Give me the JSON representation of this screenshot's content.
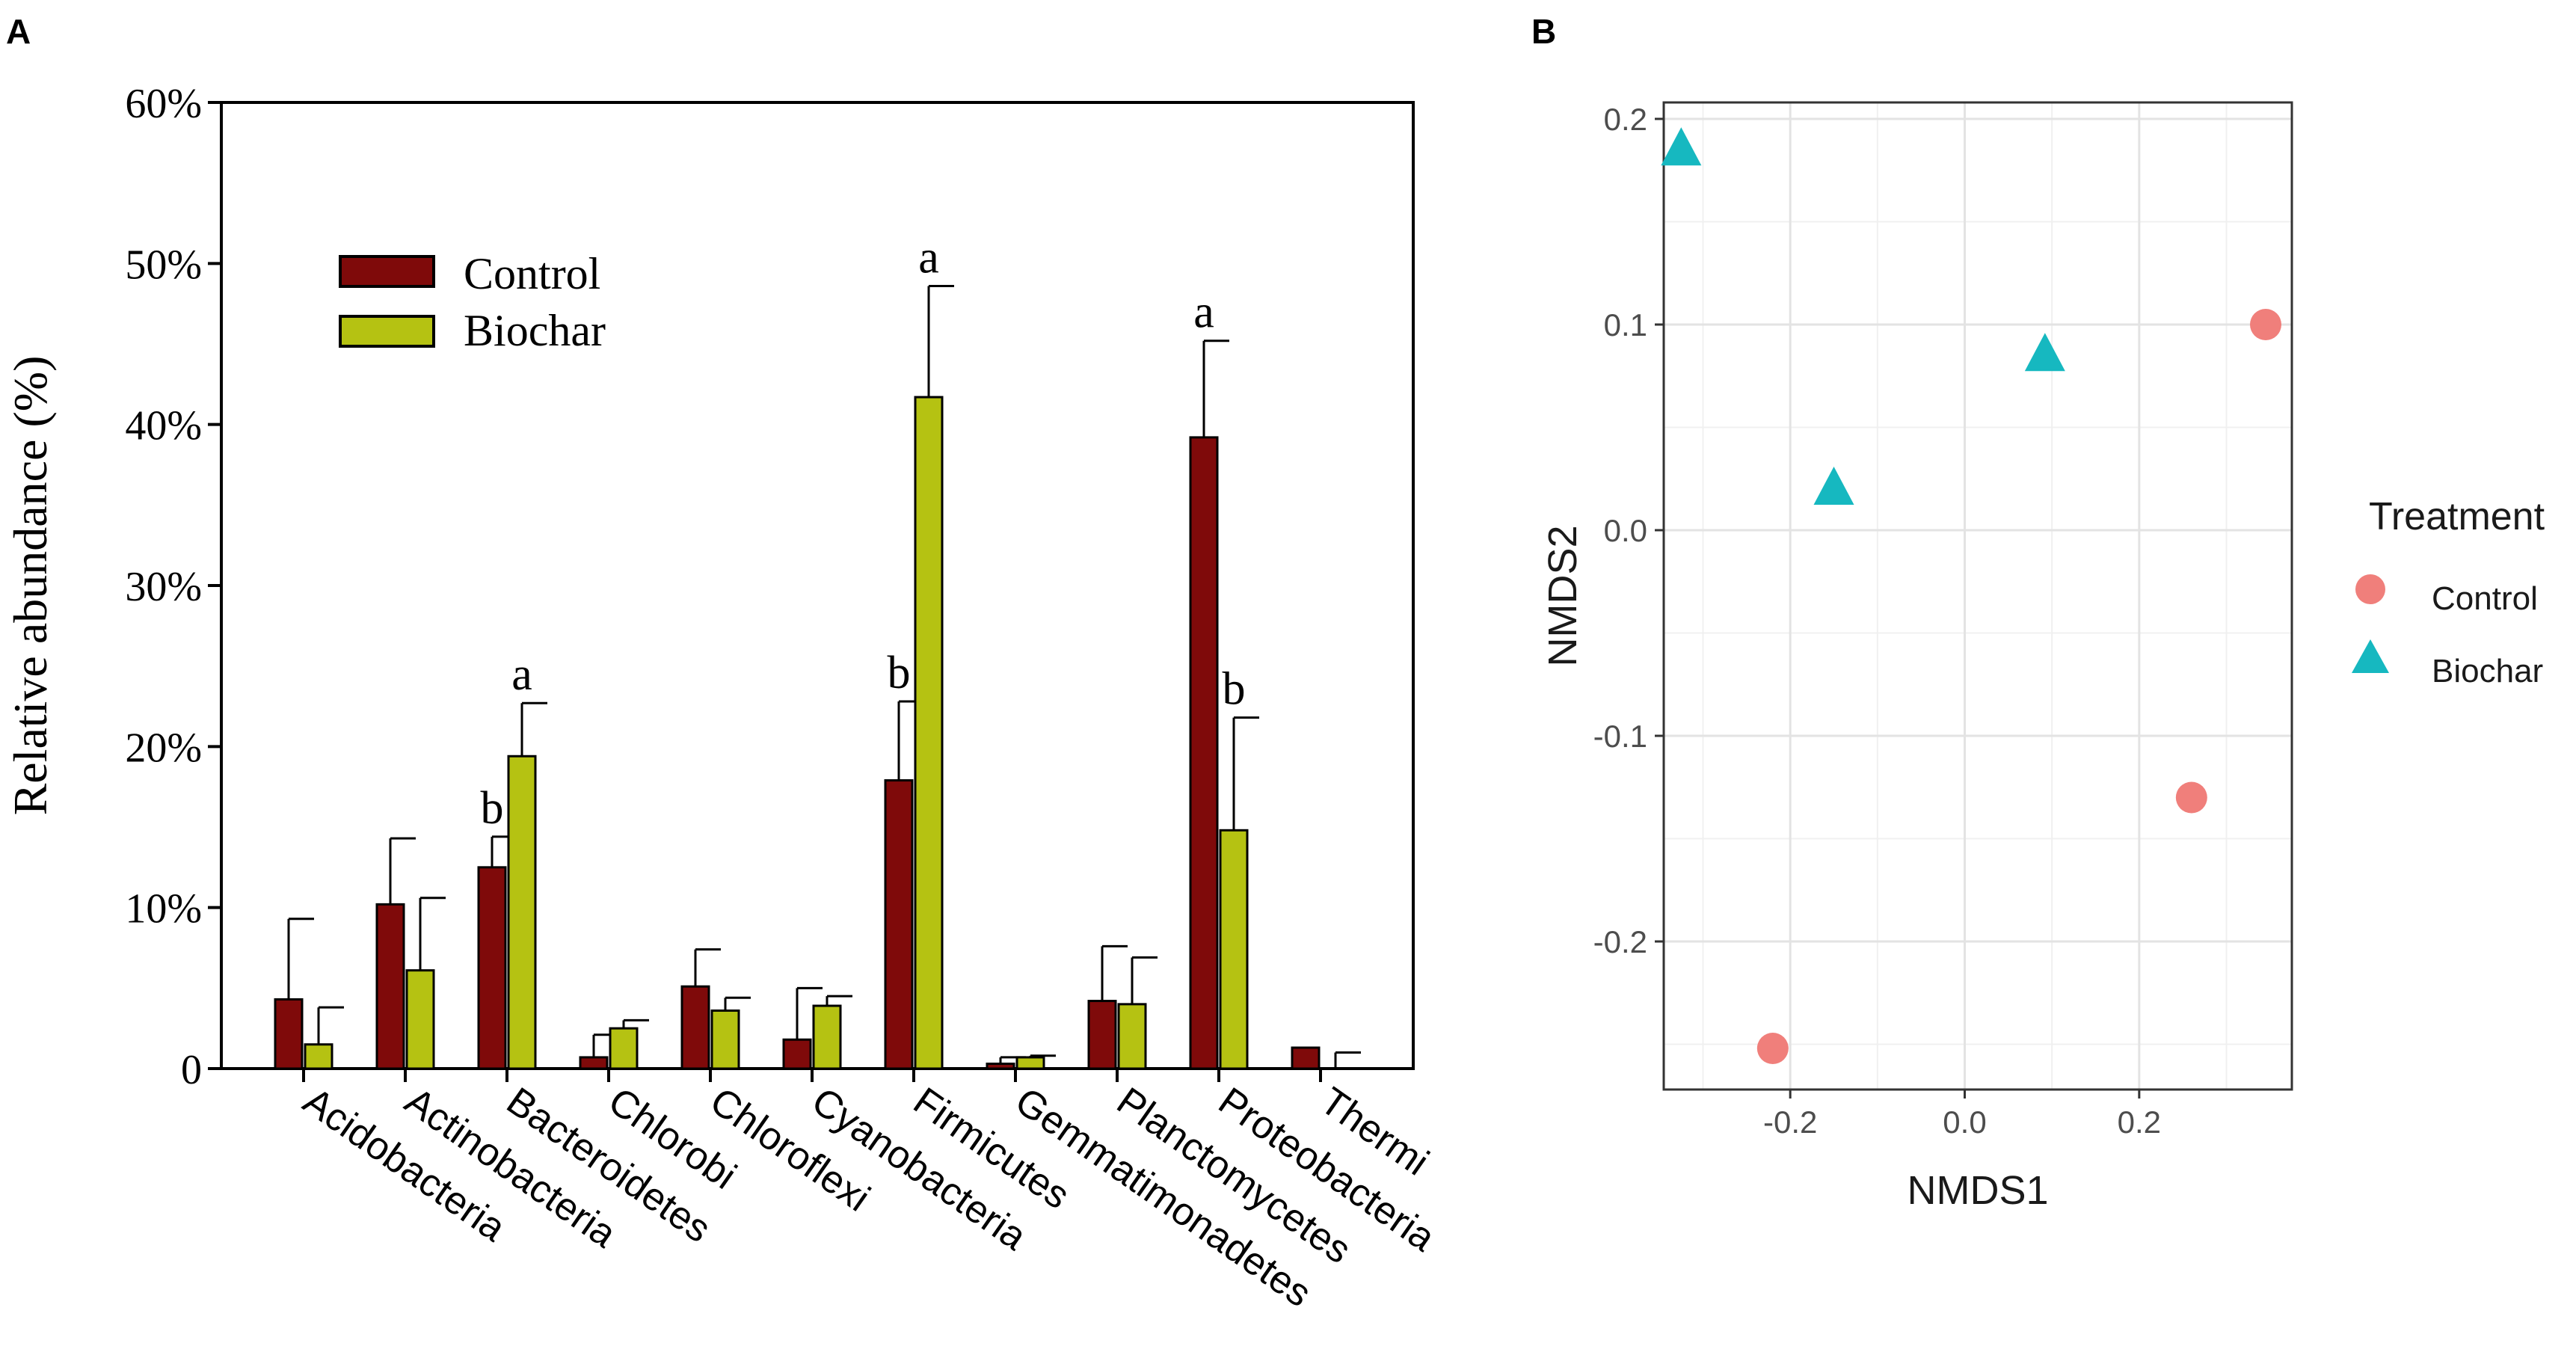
{
  "chart_data": [
    {
      "panel": "A",
      "type": "bar",
      "ylabel": "Relative abundance (%)",
      "xlabel": "",
      "ylim": [
        0,
        60
      ],
      "yticks": [
        "0",
        "10%",
        "20%",
        "30%",
        "40%",
        "50%",
        "60%"
      ],
      "ytick_values": [
        0,
        10,
        20,
        30,
        40,
        50,
        60
      ],
      "grid": false,
      "legend_position": "top-left",
      "categories": [
        "Acidobacteria",
        "Actinobacteria",
        "Bacteroidetes",
        "Chlorobi",
        "Chloroflexi",
        "Cyanobacteria",
        "Firmicutes",
        "Gemmatimonadetes",
        "Planctomycetes",
        "Proteobacteria",
        "Thermi"
      ],
      "series": [
        {
          "name": "Control",
          "color": "#7f0a0a",
          "values": [
            4.3,
            10.2,
            12.5,
            0.7,
            5.1,
            1.8,
            17.9,
            0.3,
            4.2,
            39.2,
            1.3
          ],
          "errors": [
            5.0,
            4.1,
            1.9,
            1.4,
            2.3,
            3.2,
            4.9,
            0.4,
            3.4,
            6.0,
            0.0
          ],
          "labels": [
            "",
            "",
            "b",
            "",
            "",
            "",
            "b",
            "",
            "",
            "a",
            ""
          ]
        },
        {
          "name": "Biochar",
          "color": "#b5c212",
          "values": [
            1.5,
            6.1,
            19.4,
            2.5,
            3.6,
            3.9,
            41.7,
            0.7,
            4.0,
            14.8,
            0.0
          ],
          "errors": [
            2.3,
            4.5,
            3.3,
            0.5,
            0.8,
            0.6,
            6.9,
            0.1,
            2.9,
            7.0,
            1.0
          ],
          "labels": [
            "",
            "",
            "a",
            "",
            "",
            "",
            "a",
            "",
            "",
            "b",
            ""
          ]
        }
      ]
    },
    {
      "panel": "B",
      "type": "scatter",
      "xlabel": "NMDS1",
      "ylabel": "NMDS2",
      "xlim": [
        -0.345,
        0.375
      ],
      "ylim": [
        -0.272,
        0.208
      ],
      "xticks": [
        -0.2,
        0.0,
        0.2
      ],
      "xtick_labels": [
        "-0.2",
        "0.0",
        "0.2"
      ],
      "yticks": [
        -0.2,
        -0.1,
        0.0,
        0.1,
        0.2
      ],
      "ytick_labels": [
        "-0.2",
        "-0.1",
        "0.0",
        "0.1",
        "0.2"
      ],
      "grid": true,
      "legend_title": "Treatment",
      "legend_position": "right",
      "series": [
        {
          "name": "Control",
          "shape": "circle",
          "color": "#f07f7b",
          "points": [
            {
              "x": -0.22,
              "y": -0.252
            },
            {
              "x": 0.26,
              "y": -0.13
            },
            {
              "x": 0.345,
              "y": 0.1
            }
          ]
        },
        {
          "name": "Biochar",
          "shape": "triangle",
          "color": "#16b8c0",
          "points": [
            {
              "x": -0.325,
              "y": 0.185
            },
            {
              "x": -0.15,
              "y": 0.02
            },
            {
              "x": 0.092,
              "y": 0.085
            }
          ]
        }
      ]
    }
  ],
  "panel_labels": [
    "A",
    "B"
  ]
}
